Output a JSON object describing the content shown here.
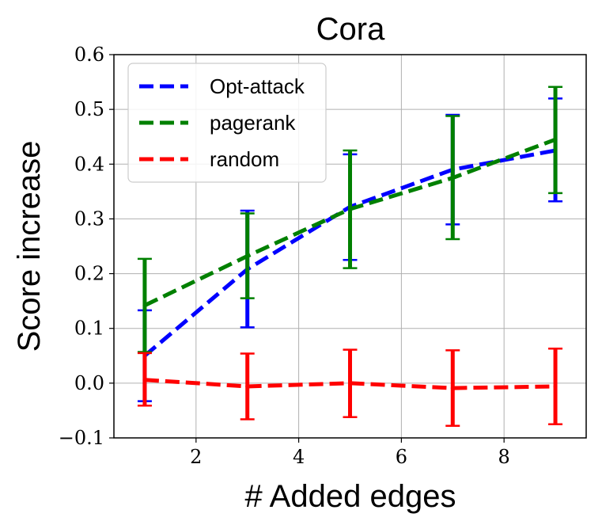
{
  "chart_data": {
    "type": "line",
    "title": "Cora",
    "xlabel": "# Added edges",
    "ylabel": "Score increase",
    "xlim": [
      0.4,
      9.6
    ],
    "ylim": [
      -0.1,
      0.6
    ],
    "grid": true,
    "legend_position": "top-left",
    "x": [
      1,
      3,
      5,
      7,
      9
    ],
    "xticks": [
      2,
      4,
      6,
      8
    ],
    "xtick_labels": [
      "2",
      "4",
      "6",
      "8"
    ],
    "yticks": [
      -0.1,
      0.0,
      0.1,
      0.2,
      0.3,
      0.4,
      0.5,
      0.6
    ],
    "ytick_labels": [
      "−0.1",
      "0.0",
      "0.1",
      "0.2",
      "0.3",
      "0.4",
      "0.5",
      "0.6"
    ],
    "series": [
      {
        "name": "Opt-attack",
        "color": "#0000ff",
        "values": [
          0.05,
          0.208,
          0.322,
          0.39,
          0.425
        ],
        "err_low": [
          -0.033,
          0.102,
          0.225,
          0.29,
          0.332
        ],
        "err_high": [
          0.133,
          0.315,
          0.418,
          0.49,
          0.52
        ]
      },
      {
        "name": "pagerank",
        "color": "#008000",
        "values": [
          0.142,
          0.232,
          0.318,
          0.375,
          0.445
        ],
        "err_low": [
          0.057,
          0.155,
          0.21,
          0.263,
          0.347
        ],
        "err_high": [
          0.227,
          0.31,
          0.425,
          0.488,
          0.541
        ]
      },
      {
        "name": "random",
        "color": "#ff0000",
        "values": [
          0.006,
          -0.006,
          0.0,
          -0.009,
          -0.006
        ],
        "err_low": [
          -0.041,
          -0.066,
          -0.062,
          -0.078,
          -0.075
        ],
        "err_high": [
          0.055,
          0.054,
          0.061,
          0.06,
          0.063
        ]
      }
    ]
  }
}
